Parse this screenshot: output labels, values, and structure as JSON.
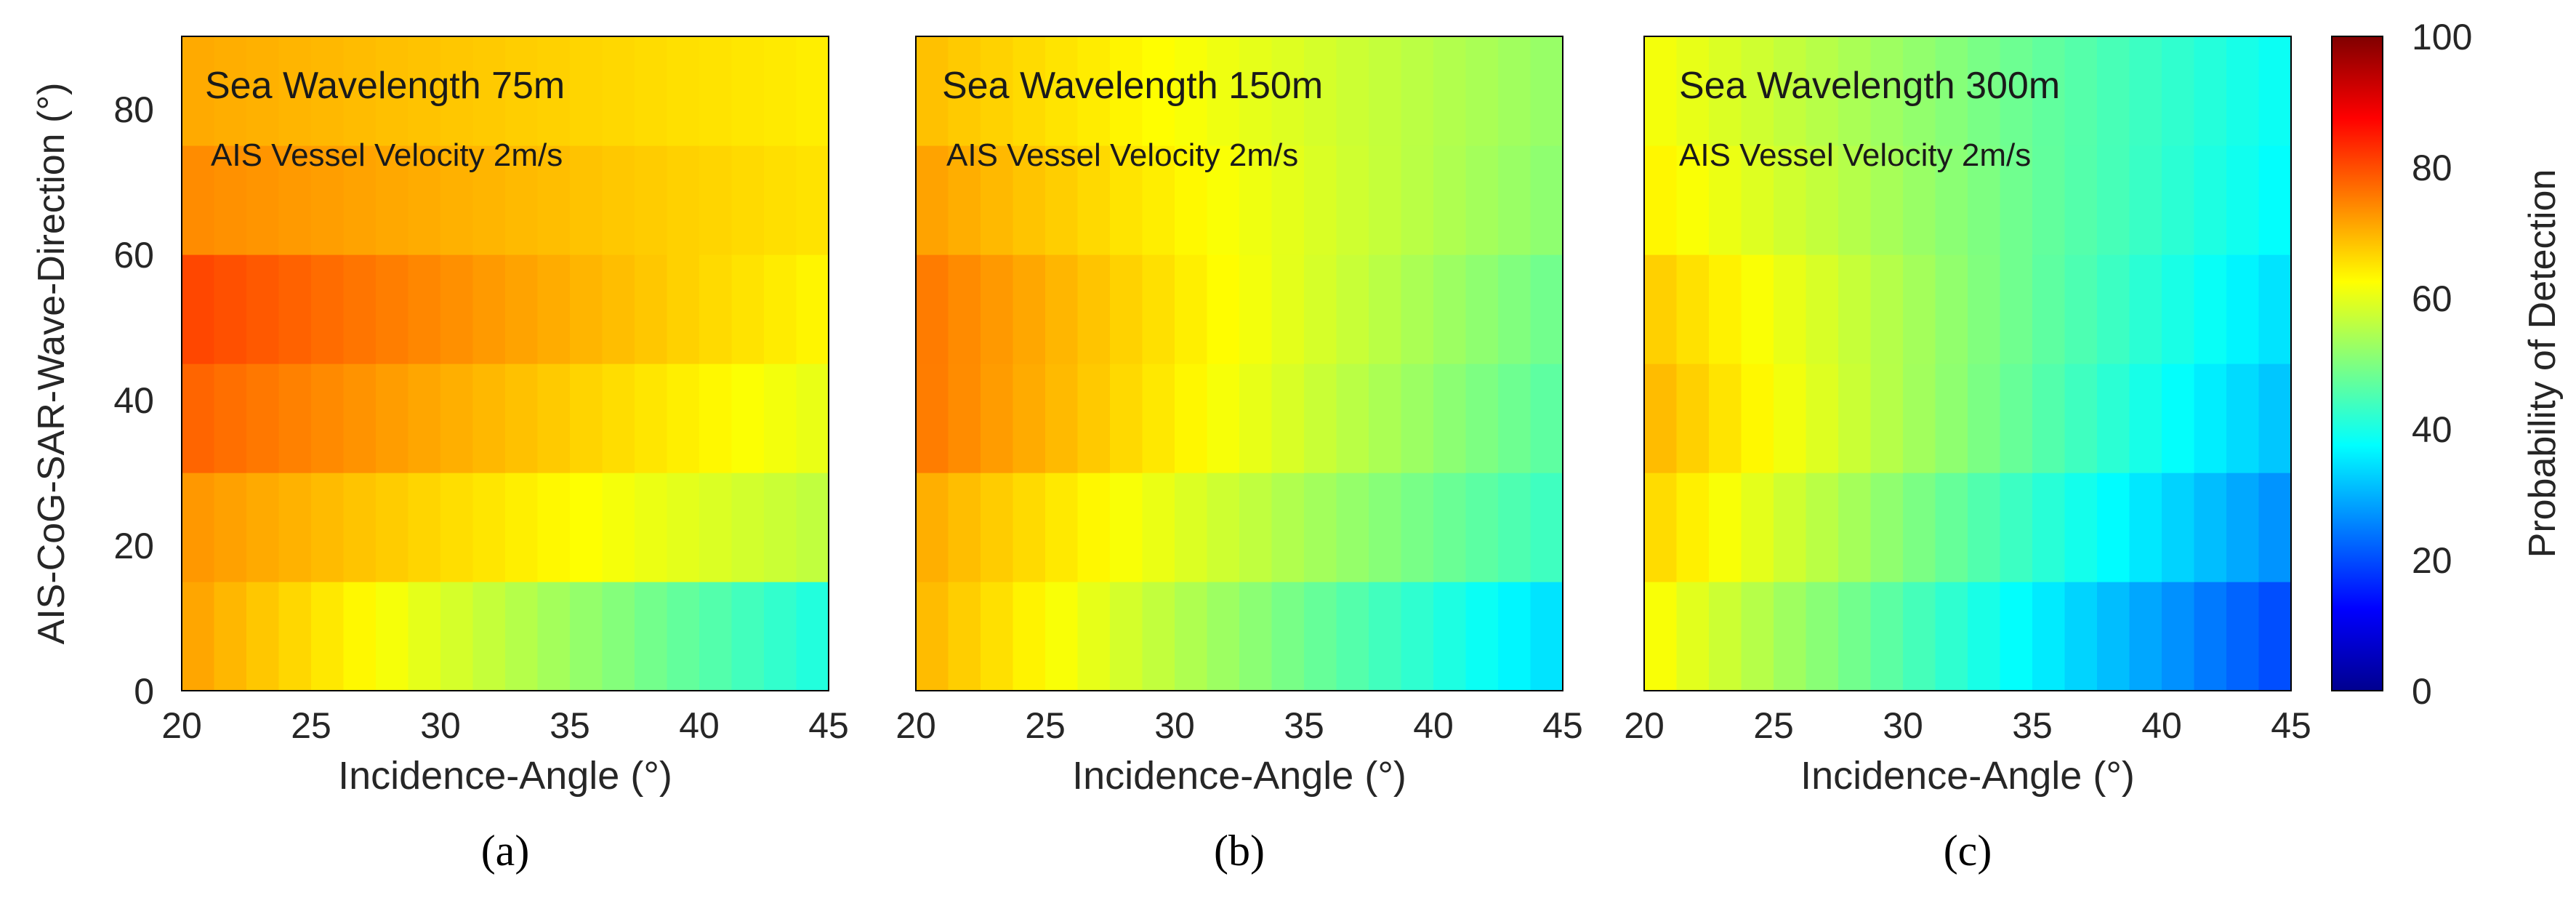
{
  "chart_data": {
    "type": "heatmap",
    "colormap": "jet",
    "x": [
      20,
      21.25,
      22.5,
      23.75,
      25,
      26.25,
      27.5,
      28.75,
      30,
      31.25,
      32.5,
      33.75,
      35,
      36.25,
      37.5,
      38.75,
      40,
      41.25,
      42.5,
      43.75
    ],
    "y_bands": [
      [
        0,
        15
      ],
      [
        15,
        30
      ],
      [
        30,
        45
      ],
      [
        45,
        60
      ],
      [
        60,
        75
      ],
      [
        75,
        90
      ]
    ],
    "xlim": [
      20,
      45
    ],
    "ylim": [
      0,
      90
    ],
    "xticks": [
      "20",
      "25",
      "30",
      "35",
      "40",
      "45"
    ],
    "yticks": [
      "0",
      "20",
      "40",
      "60",
      "80"
    ],
    "xlabel": "Incidence-Angle (°)",
    "ylabel": "AIS-CoG-SAR-Wave-Direction (°)",
    "colorbar": {
      "label": "Probability of Detection",
      "range": [
        0,
        100
      ],
      "ticks": [
        "0",
        "20",
        "40",
        "60",
        "80",
        "100"
      ]
    },
    "panels": [
      {
        "title": "Sea Wavelength 75m",
        "subtitle": "AIS Vessel Velocity 2m/s",
        "caption": "(a)",
        "start": [
          72,
          73,
          78,
          81,
          74,
          71
        ],
        "end": [
          40,
          56,
          60,
          63,
          65,
          64
        ]
      },
      {
        "title": "Sea Wavelength 150m",
        "subtitle": "AIS Vessel Velocity 2m/s",
        "caption": "(b)",
        "start": [
          70,
          71,
          76,
          76,
          72,
          69
        ],
        "end": [
          34,
          43,
          46,
          48,
          51,
          52
        ]
      },
      {
        "title": "Sea Wavelength 300m",
        "subtitle": "AIS Vessel Velocity 2m/s",
        "caption": "(c)",
        "start": [
          63,
          67,
          70,
          68,
          64,
          62
        ],
        "end": [
          19,
          26,
          31,
          34,
          37,
          38
        ]
      }
    ]
  }
}
